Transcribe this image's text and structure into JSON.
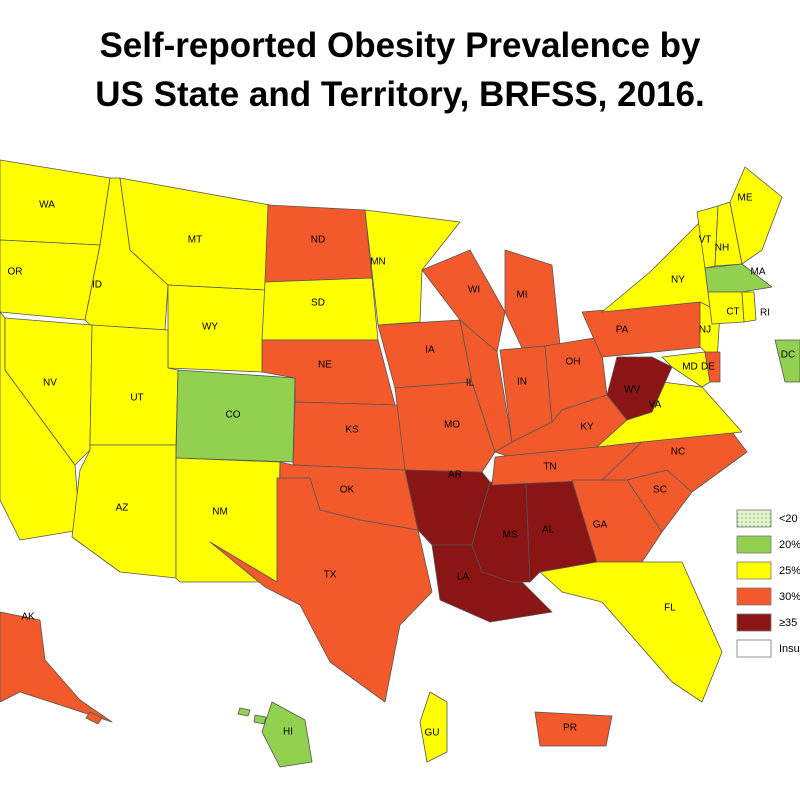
{
  "title": [
    "Self-reported Obesity Prevalence by",
    "US State and Territory, BRFSS, 2016."
  ],
  "legend": [
    {
      "label": "<20",
      "color": "#e3f2cf"
    },
    {
      "label": "20%",
      "color": "#92d050"
    },
    {
      "label": "25%",
      "color": "#ffff00"
    },
    {
      "label": "30%",
      "color": "#f25a2c"
    },
    {
      "label": "≥35",
      "color": "#8b1414"
    },
    {
      "label": "Insu",
      "color": "#ffffff"
    }
  ],
  "states": [
    {
      "label": "WA",
      "category": 2
    },
    {
      "label": "OR",
      "category": 2
    },
    {
      "category": 2
    },
    {
      "label": "ID",
      "category": 2
    },
    {
      "label": "MT",
      "category": 2
    },
    {
      "label": "WY",
      "category": 2
    },
    {
      "label": "NV",
      "category": 2
    },
    {
      "label": "UT",
      "category": 2
    },
    {
      "label": "AZ",
      "category": 2
    },
    {
      "label": "CO",
      "category": 1
    },
    {
      "label": "NM",
      "category": 2
    },
    {
      "label": "ND",
      "category": 3
    },
    {
      "label": "SD",
      "category": 2
    },
    {
      "label": "NE",
      "category": 3
    },
    {
      "label": "KS",
      "category": 3
    },
    {
      "label": "OK",
      "category": 3
    },
    {
      "label": "TX",
      "category": 3
    },
    {
      "label": "MN",
      "category": 2
    },
    {
      "label": "IA",
      "category": 3
    },
    {
      "label": "MO",
      "category": 3
    },
    {
      "label": "AR",
      "category": 4
    },
    {
      "label": "LA",
      "category": 4
    },
    {
      "label": "MS",
      "category": 4
    },
    {
      "label": "AL",
      "category": 4
    },
    {
      "label": "WI",
      "category": 3
    },
    {
      "label": "IL",
      "category": 3
    },
    {
      "label": "MI",
      "category": 3
    },
    {
      "label": "IN",
      "category": 3
    },
    {
      "label": "OH",
      "category": 3
    },
    {
      "label": "KY",
      "category": 3
    },
    {
      "label": "TN",
      "category": 3
    },
    {
      "label": "GA",
      "category": 3
    },
    {
      "label": "SC",
      "category": 3
    },
    {
      "label": "NC",
      "category": 3
    },
    {
      "label": "FL",
      "category": 2
    },
    {
      "label": "VA",
      "category": 2
    },
    {
      "label": "WV",
      "category": 4
    },
    {
      "label": "PA",
      "category": 3
    },
    {
      "label": "NY",
      "category": 2
    },
    {
      "label": "NJ",
      "category": 2
    },
    {
      "label": "MD",
      "category": 2
    },
    {
      "label": "DE",
      "category": 3
    },
    {
      "label": "VT",
      "category": 2
    },
    {
      "label": "NH",
      "category": 2
    },
    {
      "label": "ME",
      "category": 2
    },
    {
      "label": "MA",
      "category": 1
    },
    {
      "label": "CT",
      "category": 2
    },
    {
      "label": "RI",
      "category": 2
    },
    {
      "label": "DC",
      "category": 1
    },
    {
      "label": "AK",
      "category": 3
    },
    {
      "label": "HI",
      "category": 1
    },
    {
      "label": "PR",
      "category": 3
    },
    {
      "label": "GU",
      "category": 2
    }
  ]
}
